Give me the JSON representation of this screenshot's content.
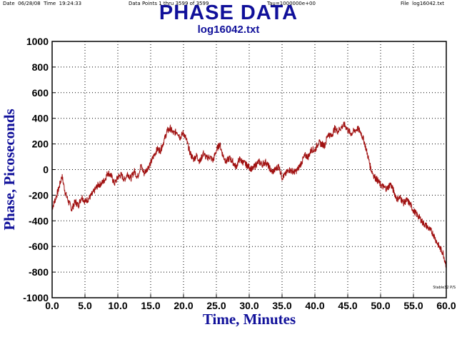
{
  "header": {
    "left": "Date  06/28/08  Time  19:24:33",
    "data_points": "Data Points 1 thru 3599 of 3599",
    "tau": "Tau=1000000e+00",
    "file": "File  log16042.txt"
  },
  "stamp": "Stable32 P/S",
  "chart_data": {
    "type": "line",
    "title": "PHASE DATA",
    "subtitle": "log16042.txt",
    "xlabel": "Time, Minutes",
    "ylabel": "Phase, Picoseconds",
    "xlim": [
      0,
      60
    ],
    "ylim": [
      -1000,
      1000
    ],
    "xticks": [
      "0.0",
      "5.0",
      "10.0",
      "15.0",
      "20.0",
      "25.0",
      "30.0",
      "35.0",
      "40.0",
      "45.0",
      "50.0",
      "55.0",
      "60.0"
    ],
    "yticks": [
      "1000",
      "800",
      "600",
      "400",
      "200",
      "0",
      "-200",
      "-400",
      "-600",
      "-800",
      "-1000"
    ],
    "grid": true,
    "line_color": "#a01010",
    "series": [
      {
        "x": [
          0,
          0.5,
          1,
          1.5,
          2,
          2.5,
          3,
          3.5,
          4,
          4.5,
          5,
          5.5,
          6,
          6.5,
          7,
          7.5,
          8,
          8.5,
          9,
          9.5,
          10,
          10.5,
          11,
          11.5,
          12,
          12.5,
          13,
          13.5,
          14,
          14.5,
          15,
          15.5,
          16,
          16.5,
          17,
          17.5,
          18,
          18.5,
          19,
          19.5,
          20,
          20.5,
          21,
          21.5,
          22,
          22.5,
          23,
          23.5,
          24,
          24.5,
          25,
          25.5,
          26,
          26.5,
          27,
          27.5,
          28,
          28.5,
          29,
          29.5,
          30,
          30.5,
          31,
          31.5,
          32,
          32.5,
          33,
          33.5,
          34,
          34.5,
          35,
          35.5,
          36,
          36.5,
          37,
          37.5,
          38,
          38.5,
          39,
          39.5,
          40,
          40.5,
          41,
          41.5,
          42,
          42.5,
          43,
          43.5,
          44,
          44.5,
          45,
          45.5,
          46,
          46.5,
          47,
          47.5,
          48,
          48.5,
          49,
          49.5,
          50,
          50.5,
          51,
          51.5,
          52,
          52.5,
          53,
          53.5,
          54,
          54.5,
          55,
          55.5,
          56,
          56.5,
          57,
          57.5,
          58,
          58.5,
          59,
          59.5,
          60
        ],
        "y": [
          -300,
          -230,
          -150,
          -50,
          -180,
          -250,
          -310,
          -250,
          -280,
          -210,
          -250,
          -230,
          -200,
          -160,
          -120,
          -110,
          -80,
          -20,
          -50,
          -110,
          -60,
          -40,
          -80,
          -30,
          -70,
          -10,
          -60,
          30,
          -30,
          10,
          50,
          110,
          160,
          150,
          220,
          300,
          320,
          280,
          300,
          250,
          290,
          220,
          130,
          80,
          110,
          60,
          130,
          90,
          100,
          70,
          150,
          200,
          110,
          60,
          90,
          60,
          20,
          80,
          60,
          40,
          20,
          0,
          40,
          60,
          40,
          60,
          20,
          -20,
          0,
          30,
          -60,
          -40,
          0,
          -10,
          -20,
          10,
          60,
          110,
          100,
          160,
          150,
          210,
          200,
          190,
          280,
          260,
          320,
          300,
          330,
          350,
          310,
          280,
          300,
          320,
          290,
          220,
          120,
          10,
          -50,
          -80,
          -120,
          -140,
          -150,
          -110,
          -170,
          -230,
          -220,
          -260,
          -240,
          -270,
          -320,
          -350,
          -380,
          -420,
          -440,
          -470,
          -500,
          -560,
          -610,
          -650,
          -750
        ]
      }
    ]
  }
}
